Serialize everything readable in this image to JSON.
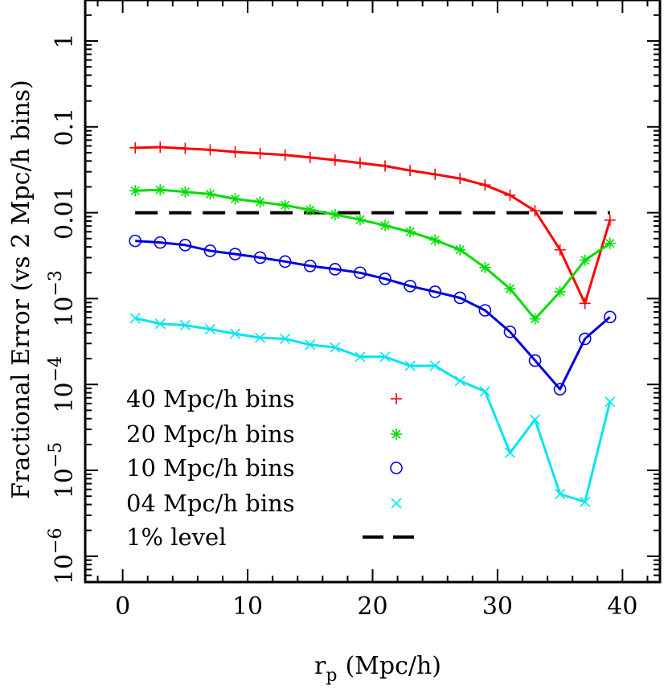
{
  "chart_data": {
    "type": "line",
    "xlabel": "r",
    "xlabel_sub": "p",
    "xlabel_unit": "(Mpc/h)",
    "ylabel": "Fractional Error (vs 2 Mpc/h bins)",
    "xlim": [
      -3,
      43
    ],
    "ylim": [
      5e-07,
      3
    ],
    "yscale": "log",
    "x_ticks": [
      0,
      10,
      20,
      30,
      40
    ],
    "x_tick_labels": [
      "0",
      "10",
      "20",
      "30",
      "40"
    ],
    "y_ticks": [
      {
        "value": 1,
        "base": "1",
        "exp": ""
      },
      {
        "value": 0.1,
        "base": "0.1",
        "exp": ""
      },
      {
        "value": 0.01,
        "base": "0.01",
        "exp": ""
      },
      {
        "value": 0.001,
        "base": "10",
        "exp": "−3"
      },
      {
        "value": 0.0001,
        "base": "10",
        "exp": "−4"
      },
      {
        "value": 1e-05,
        "base": "10",
        "exp": "−5"
      },
      {
        "value": 1e-06,
        "base": "10",
        "exp": "−6"
      }
    ],
    "x": [
      1,
      3,
      5,
      7,
      9,
      11,
      13,
      15,
      17,
      19,
      21,
      23,
      25,
      27,
      29,
      31,
      33,
      35,
      37,
      39
    ],
    "series": [
      {
        "name": "40 Mpc/h bins",
        "color": "#ff0000",
        "marker": "plus",
        "values": [
          0.057,
          0.058,
          0.056,
          0.054,
          0.051,
          0.049,
          0.047,
          0.044,
          0.041,
          0.038,
          0.035,
          0.031,
          0.028,
          0.025,
          0.021,
          0.016,
          0.0105,
          0.0037,
          0.00088,
          0.0082
        ]
      },
      {
        "name": "20 Mpc/h bins",
        "color": "#00dd00",
        "marker": "asterisk",
        "values": [
          0.018,
          0.0185,
          0.0175,
          0.0165,
          0.0145,
          0.0133,
          0.0122,
          0.0108,
          0.0095,
          0.0083,
          0.0071,
          0.006,
          0.0048,
          0.0037,
          0.0023,
          0.0013,
          0.00058,
          0.0012,
          0.0028,
          0.0044
        ]
      },
      {
        "name": "10 Mpc/h bins",
        "color": "#0000dd",
        "marker": "circle",
        "values": [
          0.0047,
          0.0045,
          0.0042,
          0.0036,
          0.0033,
          0.003,
          0.0027,
          0.0024,
          0.0022,
          0.002,
          0.0017,
          0.0014,
          0.0012,
          0.00102,
          0.00073,
          0.00041,
          0.00019,
          8.8e-05,
          0.00034,
          0.00061
        ]
      },
      {
        "name": "04 Mpc/h bins",
        "color": "#00e5ee",
        "marker": "cross",
        "values": [
          0.00059,
          0.00051,
          0.00049,
          0.00044,
          0.00039,
          0.00035,
          0.00034,
          0.00029,
          0.00027,
          0.00021,
          0.00021,
          0.000165,
          0.000165,
          0.00011,
          8.3e-05,
          1.6e-05,
          3.9e-05,
          5.3e-06,
          4.3e-06,
          6.3e-05
        ]
      }
    ],
    "reference_line": {
      "name": "1% level",
      "value": 0.01,
      "x_range": [
        1,
        39
      ],
      "color": "#000000",
      "style": "dashed"
    },
    "legend_placement": "bottom-left",
    "grid": false
  }
}
